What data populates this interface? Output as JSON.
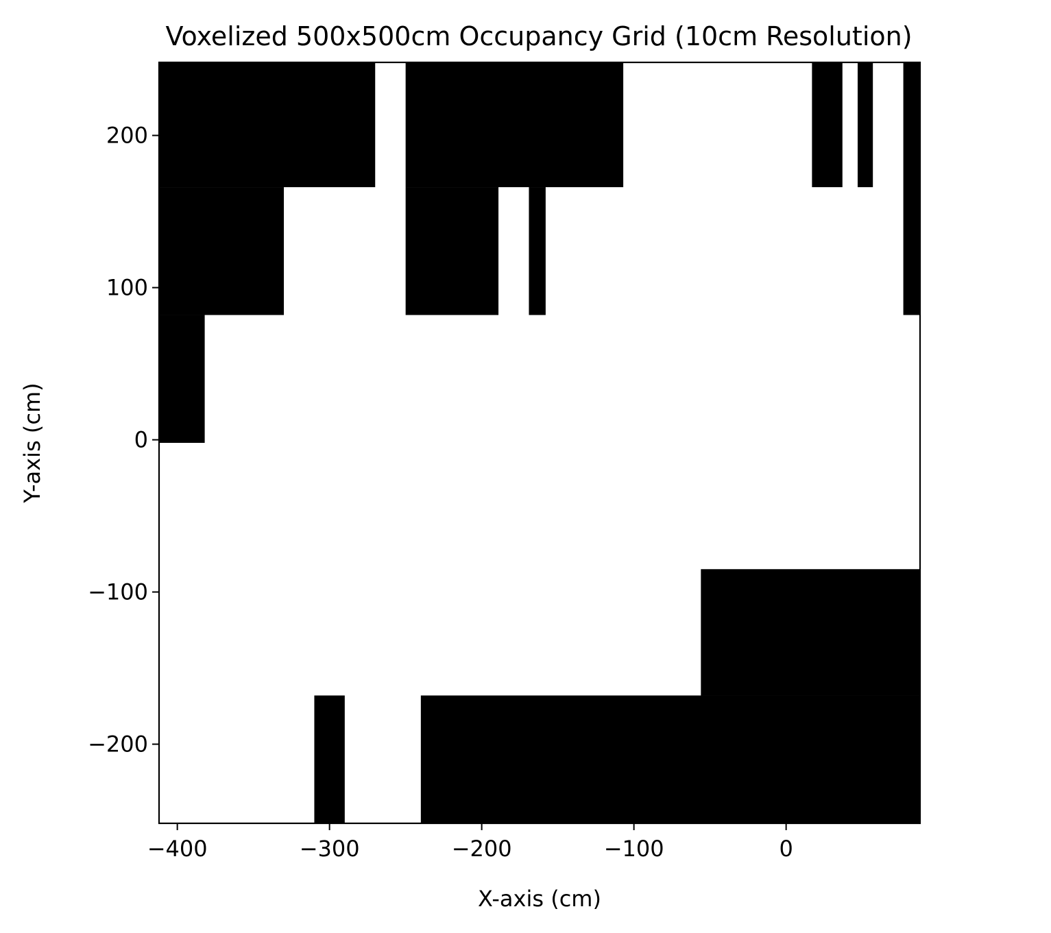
{
  "chart_data": {
    "type": "heatmap",
    "title": "Voxelized 500x500cm Occupancy Grid (10cm Resolution)",
    "xlabel": "X-axis (cm)",
    "ylabel": "Y-axis (cm)",
    "xlim": [
      -412,
      88
    ],
    "ylim": [
      -252,
      248
    ],
    "cell_size": 10,
    "x_ticks": [
      -400,
      -300,
      -200,
      -100,
      0
    ],
    "x_tick_labels": [
      "−400",
      "−300",
      "−200",
      "−100",
      "0"
    ],
    "y_ticks": [
      -200,
      -100,
      0,
      100,
      200
    ],
    "y_tick_labels": [
      "−200",
      "−100",
      "0",
      "100",
      "200"
    ],
    "grid": false,
    "legend": "none",
    "colors": {
      "occupied": "#000000",
      "free": "#ffffff"
    },
    "occupied_regions": [
      {
        "x0": -412,
        "x1": -270,
        "y0": 166,
        "y1": 248
      },
      {
        "x0": -412,
        "x1": -330,
        "y0": 82,
        "y1": 166
      },
      {
        "x0": -412,
        "x1": -382,
        "y0": -2,
        "y1": 82
      },
      {
        "x0": -250,
        "x1": -107,
        "y0": 166,
        "y1": 248
      },
      {
        "x0": -250,
        "x1": -189,
        "y0": 82,
        "y1": 166
      },
      {
        "x0": -169,
        "x1": -158,
        "y0": 82,
        "y1": 166
      },
      {
        "x0": 17,
        "x1": 37,
        "y0": 166,
        "y1": 248
      },
      {
        "x0": 47,
        "x1": 57,
        "y0": 166,
        "y1": 248
      },
      {
        "x0": 77,
        "x1": 88,
        "y0": 82,
        "y1": 248
      },
      {
        "x0": -56,
        "x1": 88,
        "y0": -168,
        "y1": -85
      },
      {
        "x0": -240,
        "x1": 88,
        "y0": -252,
        "y1": -168
      },
      {
        "x0": -310,
        "x1": -290,
        "y0": -252,
        "y1": -168
      }
    ]
  }
}
